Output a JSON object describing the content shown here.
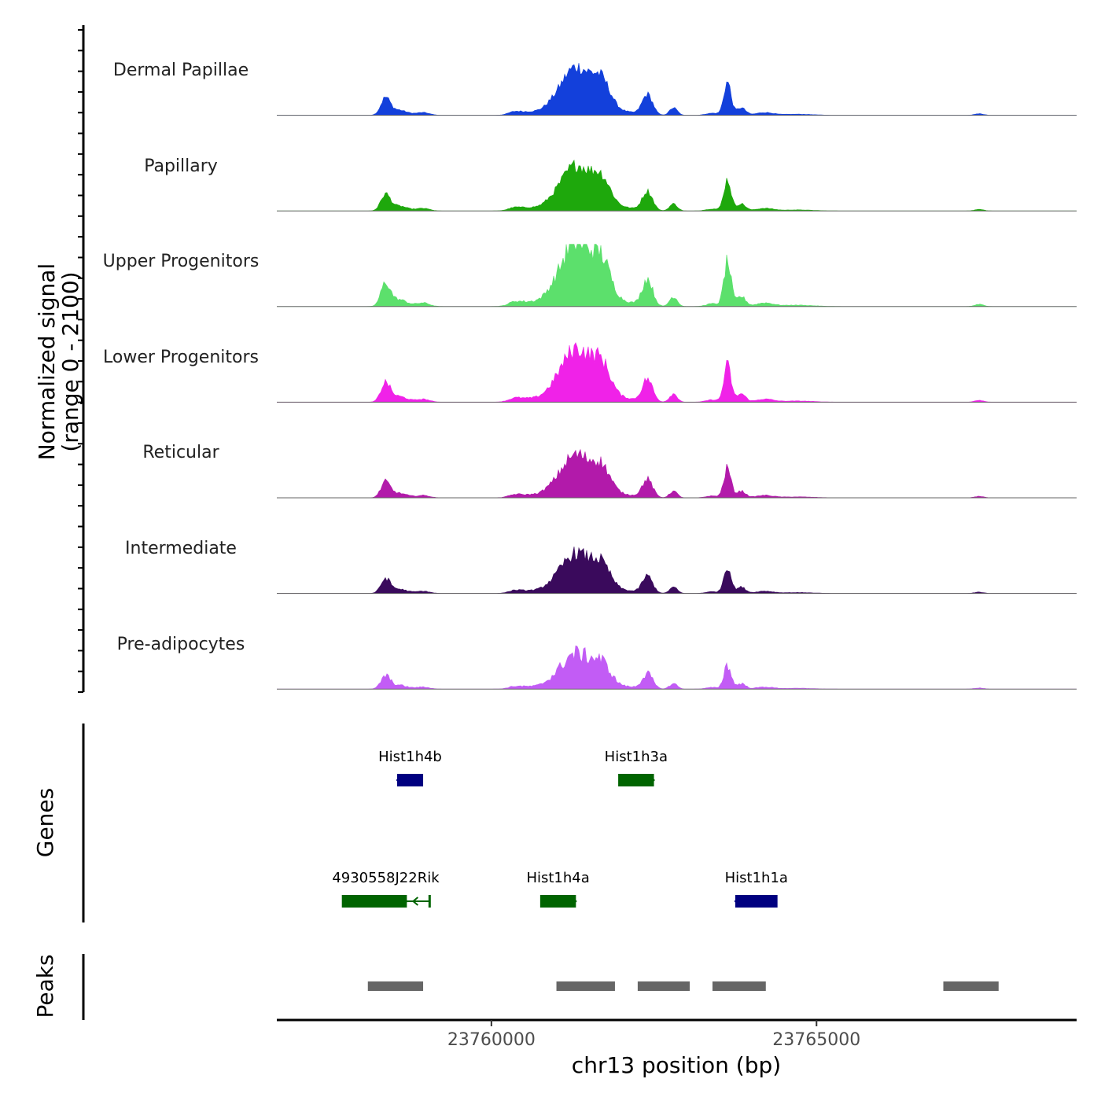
{
  "chart_data": {
    "type": "area",
    "title": "",
    "coverage_ylabel_line1": "Normalized signal",
    "coverage_ylabel_line2": "(range 0 - 2100)",
    "genes_ylabel": "Genes",
    "peaks_ylabel": "Peaks",
    "xlabel": "chr13 position (bp)",
    "xlim": [
      23756700,
      23769000
    ],
    "ylim": [
      0,
      2100
    ],
    "xticks": [
      {
        "value": 23760000,
        "label": "23760000"
      },
      {
        "value": 23765000,
        "label": "23765000"
      }
    ],
    "peak_profile": [
      {
        "x": 23758370,
        "h": 0.3,
        "w": 70
      },
      {
        "x": 23758560,
        "h": 0.1,
        "w": 140
      },
      {
        "x": 23758950,
        "h": 0.05,
        "w": 100
      },
      {
        "x": 23760350,
        "h": 0.04,
        "w": 90
      },
      {
        "x": 23760550,
        "h": 0.06,
        "w": 180
      },
      {
        "x": 23760900,
        "h": 0.05,
        "w": 120
      },
      {
        "x": 23761300,
        "h": 0.9,
        "w": 240
      },
      {
        "x": 23761700,
        "h": 0.5,
        "w": 140
      },
      {
        "x": 23762050,
        "h": 0.06,
        "w": 200
      },
      {
        "x": 23762400,
        "h": 0.38,
        "w": 80
      },
      {
        "x": 23762800,
        "h": 0.14,
        "w": 60
      },
      {
        "x": 23763400,
        "h": 0.04,
        "w": 100
      },
      {
        "x": 23763630,
        "h": 0.62,
        "w": 55
      },
      {
        "x": 23763840,
        "h": 0.14,
        "w": 70
      },
      {
        "x": 23764200,
        "h": 0.05,
        "w": 130
      },
      {
        "x": 23764700,
        "h": 0.02,
        "w": 250
      },
      {
        "x": 23767500,
        "h": 0.03,
        "w": 70
      }
    ],
    "series": [
      {
        "name": "Dermal Papillae",
        "color": "#1340DB",
        "scale": 0.9,
        "noise": 0.15
      },
      {
        "name": "Papillary",
        "color": "#1EA80C",
        "scale": 0.85,
        "noise": 0.15
      },
      {
        "name": "Upper Progenitors",
        "color": "#5CE06C",
        "scale": 1.2,
        "noise": 0.2
      },
      {
        "name": "Lower Progenitors",
        "color": "#F022E8",
        "scale": 1.0,
        "noise": 0.18
      },
      {
        "name": "Reticular",
        "color": "#B21AAA",
        "scale": 0.8,
        "noise": 0.18
      },
      {
        "name": "Intermediate",
        "color": "#3A0A5C",
        "scale": 0.75,
        "noise": 0.18
      },
      {
        "name": "Pre-adipocytes",
        "color": "#C25CF5",
        "scale": 0.66,
        "noise": 0.25
      }
    ],
    "genes": [
      {
        "name": "Hist1h4b",
        "start": 23758550,
        "end": 23758950,
        "strand": "-",
        "color": "#000080",
        "row": 0
      },
      {
        "name": "Hist1h3a",
        "start": 23761950,
        "end": 23762500,
        "strand": "+",
        "color": "#006400",
        "row": 0
      },
      {
        "name": "4930558J22Rik",
        "start": 23757700,
        "end": 23758700,
        "strand": "+",
        "color": "#006400",
        "row": 1,
        "line_end": 23759050
      },
      {
        "name": "Hist1h4a",
        "start": 23760750,
        "end": 23761300,
        "strand": "+",
        "color": "#006400",
        "row": 1
      },
      {
        "name": "Hist1h1a",
        "start": 23763750,
        "end": 23764400,
        "strand": "-",
        "color": "#000080",
        "row": 1
      }
    ],
    "peaks": [
      {
        "start": 23758100,
        "end": 23758950
      },
      {
        "start": 23761000,
        "end": 23761900
      },
      {
        "start": 23762250,
        "end": 23763050
      },
      {
        "start": 23763400,
        "end": 23764220
      },
      {
        "start": 23766950,
        "end": 23767800
      }
    ]
  }
}
